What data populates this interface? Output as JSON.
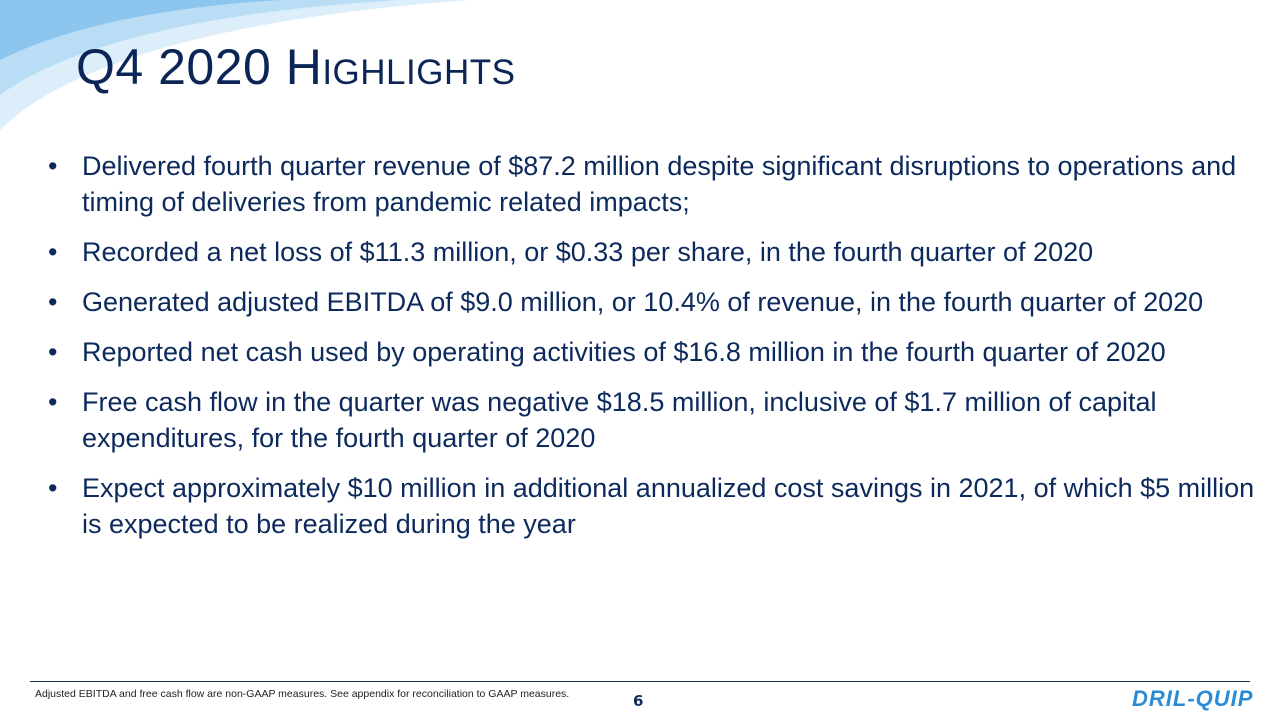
{
  "slide": {
    "title": "Q4 2020 Highlights",
    "bullets": [
      "Delivered fourth quarter revenue of $87.2 million despite significant disruptions to operations and timing of deliveries from pandemic related impacts;",
      "Recorded a net loss of $11.3 million, or $0.33 per share, in the fourth quarter of 2020",
      "Generated adjusted EBITDA of $9.0 million, or 10.4% of revenue, in the fourth quarter of 2020",
      "Reported net cash used by operating activities of $16.8 million in the fourth quarter of 2020",
      "Free cash flow in the quarter was negative $18.5 million, inclusive of $1.7 million of capital expenditures, for the fourth quarter of 2020",
      "Expect approximately $10 million in additional annualized cost savings in 2021, of which $5 million is expected to be realized during the year"
    ],
    "footnote": "Adjusted EBITDA and free cash flow are non-GAAP measures. See appendix for reconciliation to GAAP measures.",
    "page_number": "6",
    "logo": "DRIL-QUIP"
  }
}
